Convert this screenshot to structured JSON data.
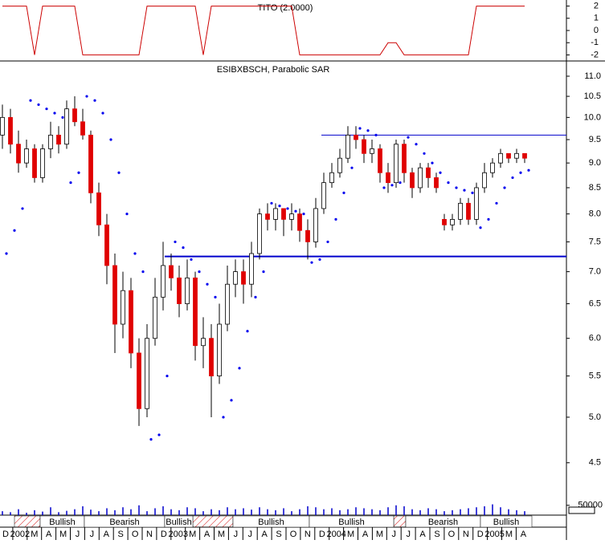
{
  "chart_data": {
    "type": "candlestick",
    "title": "ESIBXBSCH, Parabolic SAR",
    "log_scale": true,
    "ylim": [
      4.31,
      11.31
    ],
    "yticks": [
      {
        "value": 11,
        "label": "11.0"
      },
      10.5,
      {
        "value": 10,
        "label": "10.0"
      },
      9.5,
      {
        "value": 9,
        "label": "9.0"
      },
      8.5,
      {
        "value": 8,
        "label": "8.0"
      },
      7.5,
      {
        "value": 7,
        "label": "7.0"
      },
      6.5,
      {
        "value": 6,
        "label": "6.0"
      },
      5.5,
      {
        "value": 5,
        "label": "5.0"
      },
      4.5
    ],
    "up_color": "#ffffff",
    "down_color": "#e00000",
    "sar_color": "#0000ee",
    "line_color": "#0000cc",
    "open": [
      9.6,
      10.0,
      9.4,
      9.0,
      9.3,
      8.7,
      9.3,
      9.6,
      9.4,
      10.2,
      9.9,
      9.6,
      8.4,
      7.8,
      7.1,
      6.2,
      6.7,
      5.8,
      5.1,
      6.0,
      6.6,
      7.1,
      6.9,
      6.5,
      6.9,
      5.9,
      6.0,
      5.5,
      6.2,
      6.8,
      7.0,
      6.8,
      7.3,
      8.0,
      7.9,
      8.1,
      7.9,
      8.0,
      7.7,
      7.5,
      8.1,
      8.6,
      8.8,
      9.1,
      9.6,
      9.5,
      9.2,
      9.3,
      8.8,
      8.6,
      9.4,
      8.8,
      8.5,
      8.9,
      8.7,
      7.9,
      7.8,
      7.9,
      8.2,
      7.9,
      8.5,
      8.8,
      9.0,
      9.2,
      9.1,
      9.2
    ],
    "high": [
      10.3,
      10.2,
      9.7,
      9.5,
      9.4,
      9.4,
      9.9,
      9.8,
      10.4,
      10.5,
      10.2,
      9.7,
      8.6,
      8.0,
      7.3,
      7.0,
      6.9,
      6.0,
      6.2,
      6.9,
      7.5,
      7.3,
      7.1,
      7.2,
      7.0,
      6.3,
      6.2,
      6.5,
      7.1,
      7.2,
      7.2,
      7.5,
      8.1,
      8.2,
      8.2,
      8.1,
      8.2,
      8.1,
      7.9,
      8.3,
      8.8,
      9.0,
      9.3,
      9.8,
      9.8,
      9.6,
      9.5,
      9.4,
      9.0,
      9.5,
      9.5,
      8.9,
      9.0,
      9.0,
      8.8,
      8.0,
      8.0,
      8.3,
      8.3,
      8.6,
      9.0,
      9.1,
      9.3,
      9.2,
      9.3,
      9.2
    ],
    "low": [
      9.3,
      9.2,
      8.8,
      8.9,
      8.6,
      8.6,
      9.1,
      9.2,
      9.3,
      9.8,
      9.5,
      8.2,
      7.6,
      6.8,
      5.8,
      6.0,
      5.6,
      4.9,
      5.0,
      5.9,
      6.4,
      6.7,
      6.3,
      6.4,
      5.7,
      5.6,
      5.0,
      5.4,
      6.1,
      6.6,
      6.5,
      6.6,
      7.2,
      7.7,
      7.7,
      7.6,
      7.7,
      7.5,
      7.2,
      7.4,
      8.0,
      8.5,
      8.7,
      9.0,
      9.3,
      9.0,
      9.0,
      8.6,
      8.4,
      8.5,
      8.6,
      8.3,
      8.4,
      8.5,
      8.4,
      7.7,
      7.7,
      7.8,
      7.8,
      7.8,
      8.4,
      8.7,
      8.9,
      9.0,
      9.0,
      9.0
    ],
    "close": [
      10.0,
      9.4,
      9.0,
      9.3,
      8.7,
      9.3,
      9.6,
      9.4,
      10.2,
      9.9,
      9.6,
      8.4,
      7.8,
      7.1,
      6.2,
      6.7,
      5.8,
      5.1,
      6.0,
      6.6,
      7.1,
      6.9,
      6.5,
      6.9,
      5.9,
      6.0,
      5.5,
      6.2,
      6.8,
      7.0,
      6.8,
      7.3,
      8.0,
      7.9,
      8.1,
      7.9,
      8.0,
      7.7,
      7.5,
      8.1,
      8.6,
      8.8,
      9.1,
      9.6,
      9.5,
      9.2,
      9.3,
      8.8,
      8.6,
      9.4,
      8.8,
      8.5,
      8.9,
      8.7,
      8.5,
      7.8,
      7.9,
      8.2,
      7.9,
      8.5,
      8.8,
      9.0,
      9.2,
      9.1,
      9.2,
      9.1
    ],
    "sar": [
      7.3,
      7.7,
      8.1,
      10.4,
      10.3,
      10.2,
      10.1,
      10.0,
      8.6,
      8.8,
      10.5,
      10.4,
      10.1,
      9.5,
      8.8,
      8.0,
      7.3,
      7.0,
      4.75,
      4.8,
      5.5,
      7.5,
      7.4,
      7.2,
      7.0,
      6.8,
      6.6,
      5.0,
      5.2,
      5.6,
      6.1,
      6.6,
      7.0,
      8.2,
      8.15,
      8.1,
      8.05,
      8.0,
      7.15,
      7.2,
      7.5,
      7.9,
      8.4,
      8.9,
      9.75,
      9.7,
      9.6,
      8.5,
      8.55,
      8.6,
      9.55,
      9.4,
      9.2,
      9.0,
      8.8,
      8.6,
      8.5,
      8.45,
      8.4,
      7.75,
      7.9,
      8.2,
      8.5,
      8.7,
      8.8,
      8.85
    ],
    "reference_lines": [
      9.6,
      7.25
    ],
    "indicator": {
      "title": "TITO (2.0000)",
      "ylim": [
        -2.3,
        2.3
      ],
      "yticks": [
        2,
        1,
        0,
        -1,
        -2
      ],
      "color": "#cc0000",
      "values": [
        2,
        2,
        2,
        2,
        -2,
        2,
        2,
        2,
        2,
        2,
        -2,
        -2,
        -2,
        -2,
        -2,
        -2,
        -2,
        -2,
        2,
        2,
        2,
        2,
        2,
        2,
        2,
        -2,
        2,
        2,
        2,
        2,
        2,
        2,
        2,
        2,
        2,
        2,
        2,
        -2,
        -2,
        -2,
        -2,
        -2,
        -2,
        -2,
        -2,
        -2,
        -2,
        -2,
        -1,
        -1,
        -2,
        -2,
        -2,
        -2,
        -2,
        -2,
        -2,
        -2,
        -2,
        2,
        2,
        2,
        2,
        2,
        2,
        2
      ]
    },
    "volume": {
      "ylim": [
        0,
        90000
      ],
      "yticks": [
        50000
      ],
      "color": "#0000cc",
      "values": [
        20000,
        15000,
        30000,
        12000,
        25000,
        18000,
        40000,
        15000,
        22000,
        30000,
        45000,
        28000,
        20000,
        35000,
        25000,
        40000,
        30000,
        50000,
        20000,
        35000,
        45000,
        30000,
        25000,
        40000,
        35000,
        20000,
        30000,
        25000,
        40000,
        30000,
        35000,
        28000,
        40000,
        30000,
        25000,
        35000,
        20000,
        30000,
        45000,
        40000,
        30000,
        35000,
        25000,
        30000,
        40000,
        35000,
        30000,
        25000,
        40000,
        50000,
        45000,
        30000,
        25000,
        35000,
        30000,
        20000,
        25000,
        30000,
        35000,
        40000,
        45000,
        55000,
        40000,
        30000,
        25000,
        20000
      ]
    },
    "bands": [
      "Bullish",
      "Bearish",
      "Bullish",
      "Bullish",
      "Bullish",
      "Bearish",
      "Bullish"
    ],
    "x_labels": [
      "D",
      "2002",
      "M",
      "A",
      "M",
      "J",
      "J",
      "A",
      "S",
      "O",
      "N",
      "D",
      "2003",
      "M",
      "A",
      "M",
      "J",
      "J",
      "A",
      "S",
      "O",
      "N",
      "D",
      "2004",
      "M",
      "A",
      "M",
      "J",
      "J",
      "A",
      "S",
      "O",
      "N",
      "D",
      "2005",
      "M",
      "A"
    ]
  }
}
